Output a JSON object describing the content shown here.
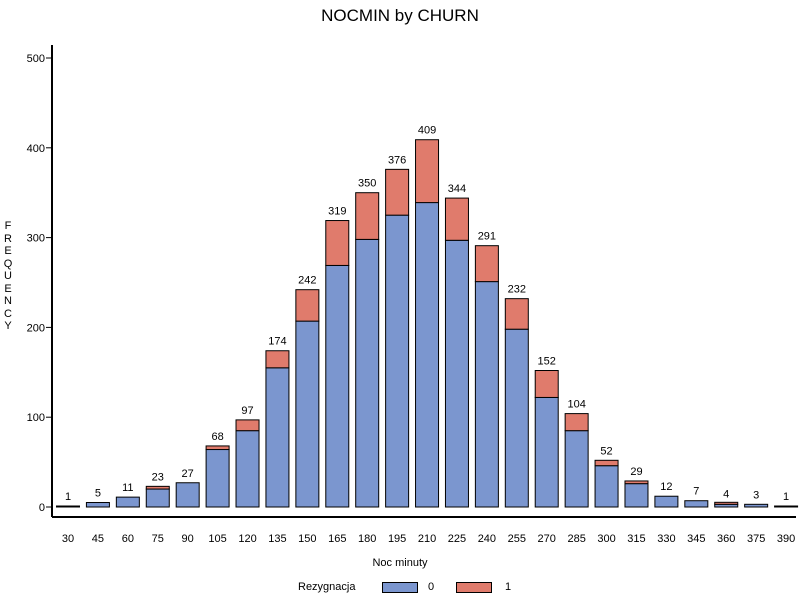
{
  "chart_data": {
    "type": "bar",
    "stacked": true,
    "title": "NOCMIN by CHURN",
    "xlabel": "Noc minuty",
    "ylabel": "FREQUENCY",
    "ylim": [
      0,
      500
    ],
    "yticks": [
      0,
      100,
      200,
      300,
      400,
      500
    ],
    "categories": [
      "30",
      "45",
      "60",
      "75",
      "90",
      "105",
      "120",
      "135",
      "150",
      "165",
      "180",
      "195",
      "210",
      "225",
      "240",
      "255",
      "270",
      "285",
      "300",
      "315",
      "330",
      "345",
      "360",
      "375",
      "390"
    ],
    "totals": [
      1,
      5,
      11,
      23,
      27,
      68,
      97,
      174,
      242,
      319,
      350,
      376,
      409,
      344,
      291,
      232,
      152,
      104,
      52,
      29,
      12,
      7,
      4,
      3,
      1
    ],
    "legend": {
      "title": "Rezygnacja",
      "position": "bottom"
    },
    "series": [
      {
        "name": "0",
        "color": "#7b96cf",
        "values": [
          1,
          5,
          11,
          20,
          27,
          64,
          85,
          155,
          207,
          269,
          298,
          325,
          339,
          297,
          251,
          198,
          122,
          85,
          46,
          26,
          12,
          7,
          3,
          3,
          1
        ]
      },
      {
        "name": "1",
        "color": "#e07b6c",
        "values": [
          0,
          0,
          0,
          3,
          0,
          4,
          12,
          19,
          35,
          50,
          52,
          51,
          70,
          47,
          40,
          34,
          30,
          19,
          6,
          3,
          0,
          0,
          1,
          0,
          0
        ]
      }
    ]
  }
}
